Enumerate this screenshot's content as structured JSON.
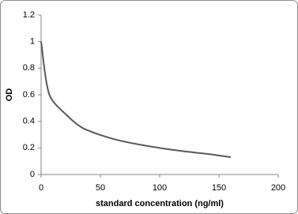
{
  "chart_data": {
    "type": "line",
    "x_label": "standard concentration (ng/ml)",
    "y_label": "OD",
    "x": [
      0,
      1,
      2,
      4,
      6,
      8,
      12,
      20,
      30,
      40,
      60,
      80,
      100,
      120,
      140,
      160
    ],
    "values": [
      1.0,
      0.93,
      0.85,
      0.72,
      0.63,
      0.58,
      0.53,
      0.46,
      0.38,
      0.33,
      0.27,
      0.23,
      0.2,
      0.175,
      0.155,
      0.13
    ],
    "color": "#595959",
    "xlim": [
      0,
      200
    ],
    "xticks": [
      0,
      50,
      100,
      150,
      200
    ],
    "ylim": [
      0,
      1.2
    ],
    "yticks": [
      0,
      0.2,
      0.4,
      0.6,
      0.8,
      1,
      1.2
    ],
    "grid": false
  }
}
